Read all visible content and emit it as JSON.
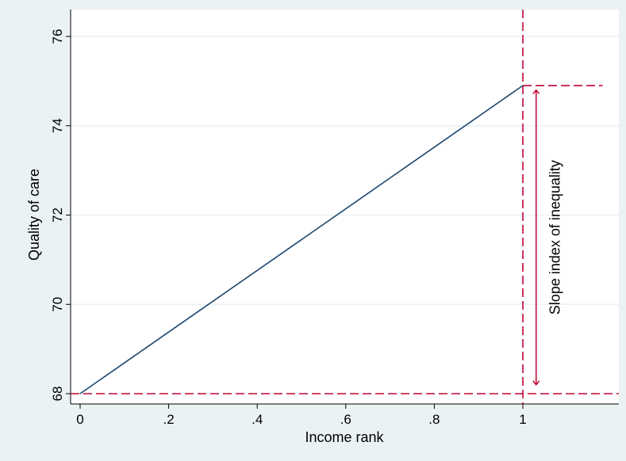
{
  "chart_data": {
    "type": "line",
    "xlabel": "Income rank",
    "ylabel": "Quality of care",
    "xlim": [
      -0.02,
      1.22
    ],
    "ylim": [
      68,
      76.1
    ],
    "x_ticks": [
      0,
      0.2,
      0.4,
      0.6,
      0.8,
      1
    ],
    "x_tick_labels": [
      "0",
      ".2",
      ".4",
      ".6",
      ".8",
      "1"
    ],
    "y_ticks": [
      68,
      70,
      72,
      74,
      76
    ],
    "y_tick_labels": [
      "68",
      "70",
      "72",
      "74",
      "76"
    ],
    "grid": true,
    "series": [
      {
        "x": [
          0,
          1
        ],
        "y": [
          68,
          74.9
        ]
      }
    ],
    "reference_lines": {
      "vertical_x": 1,
      "horizontal_bottom_y": 68,
      "horizontal_top_y": 74.9,
      "horizontal_top_x_range": [
        1,
        1.18
      ]
    },
    "annotation": {
      "text": "Slope index of inequality",
      "x": 1.03,
      "y_range": [
        68.2,
        74.8
      ]
    },
    "colors": {
      "outer_background": "#eaf2f3",
      "plot_background": "#ffffff",
      "line": "#1a476f",
      "reference": "#c10534",
      "grid": "#eaf2f3"
    }
  }
}
